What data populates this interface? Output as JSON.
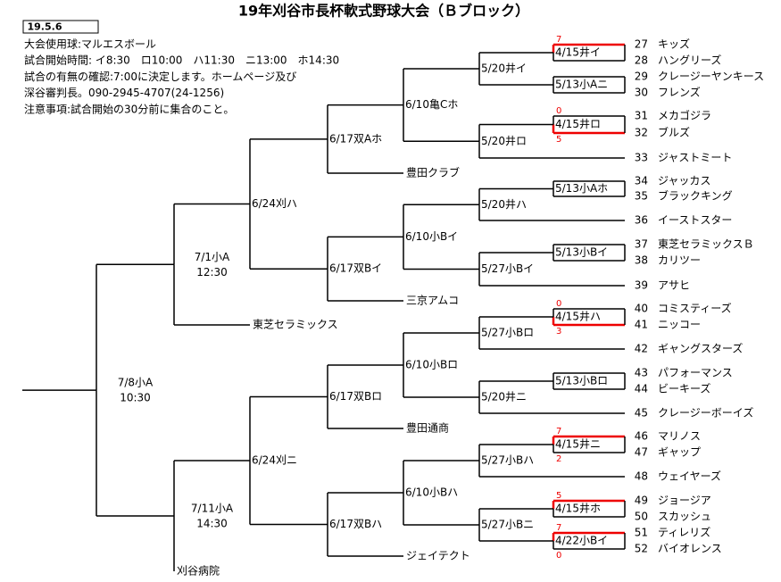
{
  "title": "19年刈谷市長杯軟式野球大会（Ｂブロック）",
  "date": "19.5.6",
  "info": [
    "大会使用球:マルエスボール",
    "試合開始時間: イ8:30　ロ10:00　ハ11:30　ニ13:00　ホ14:30",
    "試合の有無の確認:7:00に決定します。ホームページ及び",
    "深谷審判長。090-2945-4707(24-1256)",
    "注意事項:試合開始の30分前に集合のこと。"
  ],
  "teams": [
    {
      "num": "27",
      "name": "キッズ"
    },
    {
      "num": "28",
      "name": "ハングリーズ"
    },
    {
      "num": "29",
      "name": "クレージーヤンキース"
    },
    {
      "num": "30",
      "name": "フレンズ"
    },
    {
      "num": "31",
      "name": "メカゴジラ"
    },
    {
      "num": "32",
      "name": "ブルズ"
    },
    {
      "num": "33",
      "name": "ジャストミート"
    },
    {
      "num": "34",
      "name": "ジャッカス"
    },
    {
      "num": "35",
      "name": "ブラックキング"
    },
    {
      "num": "36",
      "name": "イーストスター"
    },
    {
      "num": "37",
      "name": "東芝セラミックスＢ"
    },
    {
      "num": "38",
      "name": "カリツー"
    },
    {
      "num": "39",
      "name": "アサヒ"
    },
    {
      "num": "40",
      "name": "コミスティーズ"
    },
    {
      "num": "41",
      "name": "ニッコー"
    },
    {
      "num": "42",
      "name": "ギャングスターズ"
    },
    {
      "num": "43",
      "name": "パフォーマンス"
    },
    {
      "num": "44",
      "name": "ビーキーズ"
    },
    {
      "num": "45",
      "name": "クレージーボーイズ"
    },
    {
      "num": "46",
      "name": "マリノス"
    },
    {
      "num": "47",
      "name": "ギャップ"
    },
    {
      "num": "48",
      "name": "ウェイヤーズ"
    },
    {
      "num": "49",
      "name": "ジョージア"
    },
    {
      "num": "50",
      "name": "スカッシュ"
    },
    {
      "num": "51",
      "name": "ティレリズ"
    },
    {
      "num": "52",
      "name": "バイオレンス"
    }
  ],
  "left_teams": [
    "東芝セラミックス",
    "豊田クラブ",
    "三京アムコ",
    "豊田通商",
    "ジェイテクト",
    "刈谷病院"
  ],
  "matches": [
    {
      "label": "7/8小A",
      "time": "10:30"
    },
    {
      "label": "7/1小A",
      "time": "12:30"
    },
    {
      "label": "7/11小A",
      "time": "14:30"
    },
    {
      "label": "6/24刈ハ"
    },
    {
      "label": "6/24刈ニ"
    },
    {
      "label": "6/17双Aホ"
    },
    {
      "label": "6/17双Bイ"
    },
    {
      "label": "6/17双Bロ"
    },
    {
      "label": "6/17双Bハ"
    },
    {
      "label": "6/10亀Cホ"
    },
    {
      "label": "6/10小Bイ"
    },
    {
      "label": "6/10小Bロ"
    },
    {
      "label": "6/10小Bハ"
    },
    {
      "label": "5/20井イ"
    },
    {
      "label": "5/20井ロ"
    },
    {
      "label": "5/20井ハ"
    },
    {
      "label": "5/27小Bイ"
    },
    {
      "label": "5/27小Bロ"
    },
    {
      "label": "5/20井ニ"
    },
    {
      "label": "5/27小Bハ"
    },
    {
      "label": "5/27小Bニ"
    },
    {
      "label": "4/15井イ",
      "score_top": 7
    },
    {
      "label": "5/13小Aニ"
    },
    {
      "label": "4/15井ロ",
      "score_top": 0,
      "score_bottom": 5
    },
    {
      "label": "5/13小Aホ"
    },
    {
      "label": "5/13小Bイ"
    },
    {
      "label": "4/15井ハ",
      "score_top": 0,
      "score_bottom": 3
    },
    {
      "label": "5/13小Bロ"
    },
    {
      "label": "4/15井ニ",
      "score_top": 7,
      "score_bottom": 2
    },
    {
      "label": "4/15井ホ",
      "score_top": 5
    },
    {
      "label": "4/22小Bイ",
      "score_top": 7,
      "score_bottom": 0
    }
  ]
}
